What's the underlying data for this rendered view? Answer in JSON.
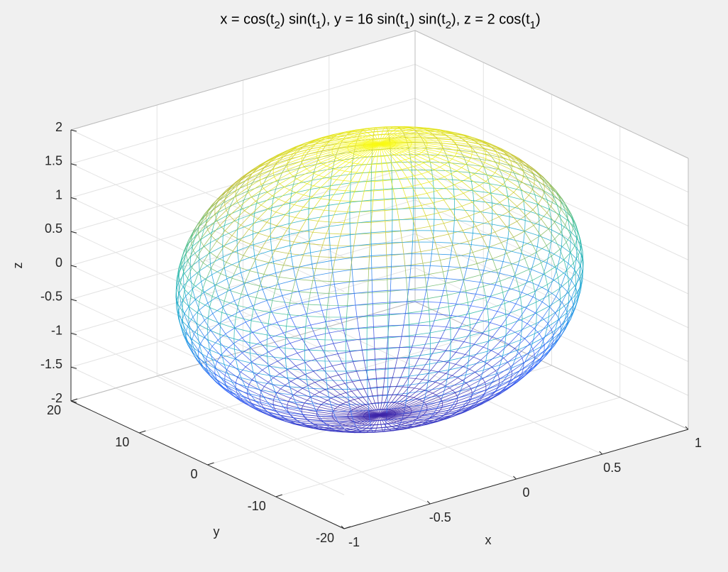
{
  "chart_data": {
    "type": "mesh3d",
    "title": "x = cos(t2) sin(t1), y = 16 sin(t1) sin(t2), z = 2 cos(t1)",
    "xlabel": "x",
    "ylabel": "y",
    "zlabel": "z",
    "surface": {
      "shape": "ellipsoid",
      "radii": [
        1,
        16,
        2
      ]
    },
    "colormap": "parula",
    "xlim": [
      -1,
      1
    ],
    "xticks": [
      -1,
      -0.5,
      0,
      0.5,
      1
    ],
    "ylim": [
      -20,
      20
    ],
    "yticks": [
      -20,
      -10,
      0,
      10,
      20
    ],
    "zlim": [
      -2,
      2
    ],
    "zticks": [
      -2,
      -1.5,
      -1,
      -0.5,
      0,
      0.5,
      1,
      1.5,
      2
    ],
    "grid": true
  }
}
